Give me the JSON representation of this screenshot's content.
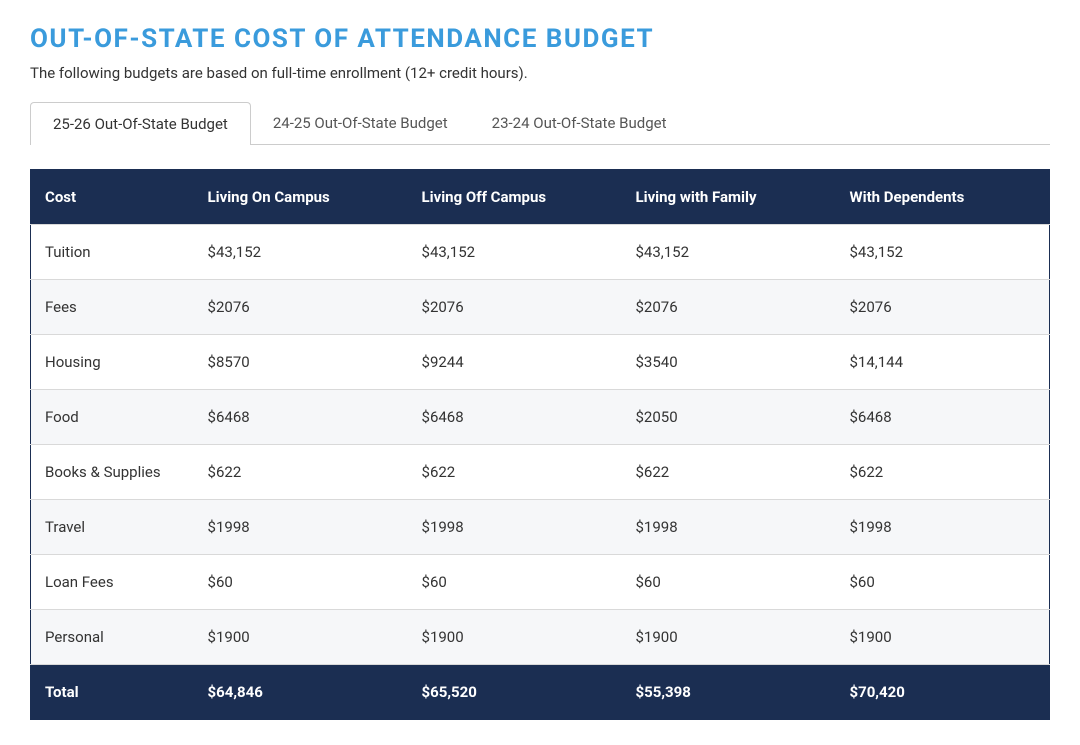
{
  "title": "OUT-OF-STATE COST OF ATTENDANCE BUDGET",
  "subtitle": "The following budgets are based on full-time enrollment (12+ credit hours).",
  "colors": {
    "title_color": "#3a9bdc",
    "header_bg": "#1b2e52",
    "header_text": "#ffffff",
    "row_alt_bg": "#f6f7f9",
    "row_bg": "#ffffff",
    "border": "#d9d9d9",
    "tab_border": "#cccccc",
    "text": "#333333"
  },
  "tabs": [
    {
      "label": "25-26 Out-Of-State Budget",
      "active": true
    },
    {
      "label": "24-25 Out-Of-State Budget",
      "active": false
    },
    {
      "label": "23-24 Out-Of-State Budget",
      "active": false
    }
  ],
  "table": {
    "type": "table",
    "columns": [
      "Cost",
      "Living On Campus",
      "Living Off Campus",
      "Living with Family",
      "With Dependents"
    ],
    "column_widths_pct": [
      16,
      21,
      21,
      21,
      21
    ],
    "rows": [
      {
        "label": "Tuition",
        "on_campus": "$43,152",
        "off_campus": "$43,152",
        "with_family": "$43,152",
        "with_dependents": "$43,152"
      },
      {
        "label": "Fees",
        "on_campus": "$2076",
        "off_campus": "$2076",
        "with_family": "$2076",
        "with_dependents": "$2076"
      },
      {
        "label": "Housing",
        "on_campus": "$8570",
        "off_campus": "$9244",
        "with_family": "$3540",
        "with_dependents": "$14,144"
      },
      {
        "label": "Food",
        "on_campus": "$6468",
        "off_campus": "$6468",
        "with_family": "$2050",
        "with_dependents": "$6468"
      },
      {
        "label": "Books & Supplies",
        "on_campus": "$622",
        "off_campus": "$622",
        "with_family": "$622",
        "with_dependents": "$622"
      },
      {
        "label": "Travel",
        "on_campus": "$1998",
        "off_campus": "$1998",
        "with_family": "$1998",
        "with_dependents": "$1998"
      },
      {
        "label": "Loan Fees",
        "on_campus": "$60",
        "off_campus": "$60",
        "with_family": "$60",
        "with_dependents": "$60"
      },
      {
        "label": "Personal",
        "on_campus": "$1900",
        "off_campus": "$1900",
        "with_family": "$1900",
        "with_dependents": "$1900"
      }
    ],
    "footer": {
      "label": "Total",
      "on_campus": "$64,846",
      "off_campus": "$65,520",
      "with_family": "$55,398",
      "with_dependents": "$70,420"
    }
  }
}
